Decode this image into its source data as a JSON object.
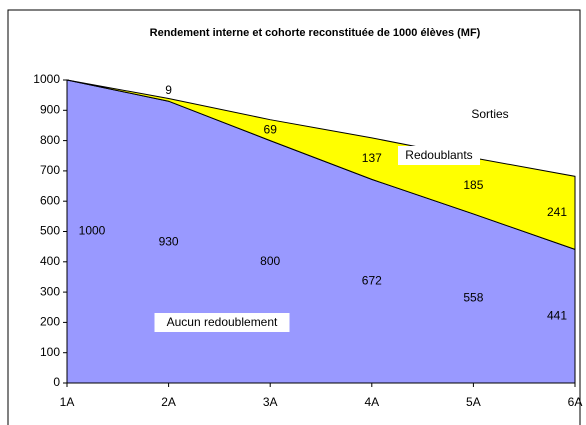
{
  "chart_data": {
    "type": "stacked_area",
    "title": "Rendement interne et cohorte reconstituée de 1000 élèves (MF)",
    "categories": [
      "1A",
      "2A",
      "3A",
      "4A",
      "5A",
      "6A"
    ],
    "series": [
      {
        "name": "Aucun redoublement",
        "color": "#9999ff",
        "values": [
          1000,
          930,
          800,
          672,
          558,
          441
        ]
      },
      {
        "name": "Redoublants",
        "color": "#ffff00",
        "values": [
          0,
          9,
          69,
          137,
          185,
          241
        ]
      }
    ],
    "annotations": [
      "Sorties"
    ],
    "ylim": [
      0,
      1000
    ],
    "yticks": [
      0,
      100,
      200,
      300,
      400,
      500,
      600,
      700,
      800,
      900,
      1000
    ],
    "grid": false
  }
}
